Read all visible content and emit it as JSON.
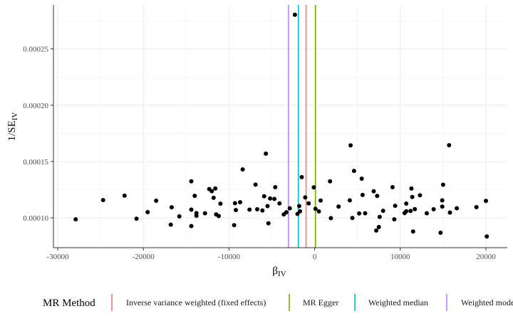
{
  "chart_data": {
    "type": "scatter",
    "xlabel": "β",
    "xlabel_sub": "IV",
    "ylabel": "1/SE",
    "ylabel_sub": "IV",
    "xlim": [
      -30500,
      22500
    ],
    "ylim": [
      7.35e-05,
      0.000289
    ],
    "x_ticks": [
      {
        "value": -30000,
        "label": "-30000"
      },
      {
        "value": -20000,
        "label": "-20000"
      },
      {
        "value": -10000,
        "label": "-10000"
      },
      {
        "value": 0,
        "label": "0"
      },
      {
        "value": 10000,
        "label": "10000"
      },
      {
        "value": 20000,
        "label": "20000"
      }
    ],
    "y_ticks": [
      {
        "value": 0.0001,
        "label": "0.00010"
      },
      {
        "value": 0.00015,
        "label": "0.00015"
      },
      {
        "value": 0.0002,
        "label": "0.00020"
      },
      {
        "value": 0.00025,
        "label": "0.00025"
      }
    ],
    "grid": true,
    "legend": {
      "position": "bottom",
      "title": "MR Method",
      "entries": [
        {
          "label": "Inverse variance weighted (fixed effects)",
          "color": "#f8766d"
        },
        {
          "label": "MR Egger",
          "color": "#7cae00"
        },
        {
          "label": "Weighted median",
          "color": "#00bfc4"
        },
        {
          "label": "Weighted mode",
          "color": "#c77cff"
        }
      ]
    },
    "vlines": [
      {
        "method": "Inverse variance weighted (fixed effects)",
        "x": -1000,
        "color": "#f8766d"
      },
      {
        "method": "MR Egger",
        "x": 100,
        "color": "#7cae00"
      },
      {
        "method": "Weighted median",
        "x": -1900,
        "color": "#00bfc4"
      },
      {
        "method": "Weighted mode",
        "x": -3050,
        "color": "#c77cff"
      }
    ],
    "points": [
      [
        -27900,
        9.87e-05
      ],
      [
        -24700,
        0.0001158
      ],
      [
        -22200,
        0.0001197
      ],
      [
        -20800,
        9.93e-05
      ],
      [
        -19500,
        0.0001051
      ],
      [
        -18500,
        0.0001152
      ],
      [
        -16800,
        9.4e-05
      ],
      [
        -16700,
        0.0001094
      ],
      [
        -15800,
        0.0001013
      ],
      [
        -14400,
        0.0001324
      ],
      [
        -14400,
        0.0001073
      ],
      [
        -14400,
        9.27e-05
      ],
      [
        -14000,
        0.0001196
      ],
      [
        -13800,
        0.0001042
      ],
      [
        -13800,
        0.0001019
      ],
      [
        -12800,
        0.0001041
      ],
      [
        -12300,
        0.0001256
      ],
      [
        -12000,
        0.0001237
      ],
      [
        -11800,
        0.0001178
      ],
      [
        -11600,
        0.000126
      ],
      [
        -11500,
        0.0001031
      ],
      [
        -11200,
        0.0001016
      ],
      [
        -11000,
        0.0001126
      ],
      [
        -9400,
        9.35e-05
      ],
      [
        -9300,
        0.000113
      ],
      [
        -9200,
        0.0001069
      ],
      [
        -8700,
        0.0001139
      ],
      [
        -8400,
        0.000143
      ],
      [
        -7600,
        0.0001073
      ],
      [
        -6900,
        0.0001295
      ],
      [
        -6700,
        0.0001076
      ],
      [
        -6100,
        0.0001065
      ],
      [
        -5900,
        0.0001192
      ],
      [
        -5700,
        0.000157
      ],
      [
        -5500,
        0.0001105
      ],
      [
        -5400,
        9.51e-05
      ],
      [
        -5200,
        0.0001172
      ],
      [
        -4700,
        0.0001168
      ],
      [
        -4600,
        0.0001272
      ],
      [
        -4100,
        0.0001128
      ],
      [
        -3600,
        0.000103
      ],
      [
        -3300,
        0.000105
      ],
      [
        -2900,
        0.0001085
      ],
      [
        -2300,
        0.0002803
      ],
      [
        -2000,
        0.0001035
      ],
      [
        -1800,
        0.0001105
      ],
      [
        -1700,
        0.0001058
      ],
      [
        -1500,
        0.0001361
      ],
      [
        -1100,
        0.0001181
      ],
      [
        -700,
        0.0001128
      ],
      [
        -100,
        0.000127
      ],
      [
        100,
        0.000108
      ],
      [
        500,
        0.0001057
      ],
      [
        700,
        0.0001154
      ],
      [
        1800,
        0.0001324
      ],
      [
        1900,
        9.97e-05
      ],
      [
        2800,
        0.00011
      ],
      [
        4100,
        0.0001155
      ],
      [
        4200,
        0.0001644
      ],
      [
        4400,
        9.99e-05
      ],
      [
        4600,
        0.0001417
      ],
      [
        5200,
        0.0001039
      ],
      [
        5500,
        0.0001348
      ],
      [
        5600,
        0.0001203
      ],
      [
        5900,
        0.0001041
      ],
      [
        6900,
        0.0001236
      ],
      [
        7200,
        8.87e-05
      ],
      [
        7300,
        0.0001195
      ],
      [
        7500,
        9.18e-05
      ],
      [
        7600,
        0.0001008
      ],
      [
        8000,
        0.0001063
      ],
      [
        9100,
        0.0001272
      ],
      [
        9300,
        9.87e-05
      ],
      [
        9400,
        0.0001107
      ],
      [
        10500,
        0.0001042
      ],
      [
        10700,
        0.0001058
      ],
      [
        10700,
        0.0001127
      ],
      [
        11200,
        0.0001061
      ],
      [
        11300,
        0.000126
      ],
      [
        11400,
        0.0001185
      ],
      [
        11500,
        8.79e-05
      ],
      [
        11700,
        0.0001077
      ],
      [
        12300,
        0.00012
      ],
      [
        13100,
        0.0001041
      ],
      [
        13900,
        0.0001076
      ],
      [
        14700,
        8.68e-05
      ],
      [
        14900,
        0.0001155
      ],
      [
        14900,
        0.00011
      ],
      [
        15000,
        0.0001294
      ],
      [
        15700,
        0.0001645
      ],
      [
        15800,
        0.0001047
      ],
      [
        16600,
        0.0001085
      ],
      [
        18900,
        0.0001095
      ],
      [
        20000,
        0.0001151
      ],
      [
        20100,
        8.34e-05
      ]
    ]
  }
}
